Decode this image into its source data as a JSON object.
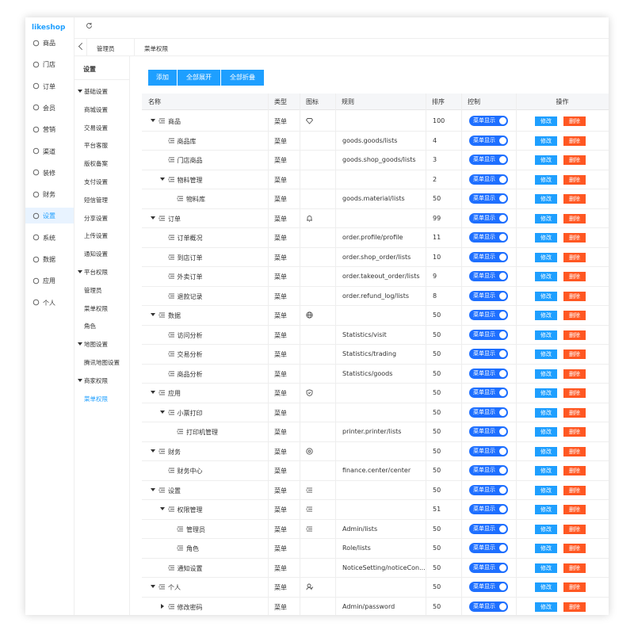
{
  "logo": "likeshop",
  "nav": [
    "商品",
    "门店",
    "订单",
    "会员",
    "营销",
    "渠道",
    "装修",
    "财务",
    "设置",
    "系统",
    "数据",
    "应用",
    "个人"
  ],
  "nav_active": 8,
  "submenu": {
    "title": "设置",
    "items": [
      {
        "label": "基础设置",
        "group": true
      },
      {
        "label": "商城设置"
      },
      {
        "label": "交易设置"
      },
      {
        "label": "平台客服"
      },
      {
        "label": "版权备案"
      },
      {
        "label": "支付设置"
      },
      {
        "label": "短信管理"
      },
      {
        "label": "分享设置"
      },
      {
        "label": "上传设置"
      },
      {
        "label": "通知设置"
      },
      {
        "label": "平台权限",
        "group": true
      },
      {
        "label": "管理员"
      },
      {
        "label": "菜单权限"
      },
      {
        "label": "角色"
      },
      {
        "label": "地图设置",
        "group": true
      },
      {
        "label": "腾讯地图设置"
      },
      {
        "label": "商家权限",
        "group": true
      },
      {
        "label": "菜单权限",
        "active": true
      }
    ]
  },
  "tabs": [
    "管理员",
    "菜单权限"
  ],
  "buttons": [
    "添加",
    "全部展开",
    "全部折叠"
  ],
  "table": {
    "headers": [
      "名称",
      "类型",
      "图标",
      "规则",
      "排序",
      "控制",
      "操作"
    ],
    "labels": {
      "show": "菜单显示",
      "edit": "修改",
      "delete": "删除"
    },
    "rows": [
      {
        "name": "商品",
        "level": 0,
        "arrow": "down",
        "icon": "diamond",
        "type": "菜单",
        "sort": "100"
      },
      {
        "name": "商品库",
        "level": 1,
        "type": "菜单",
        "rule": "goods.goods/lists",
        "sort": "4"
      },
      {
        "name": "门店商品",
        "level": 1,
        "type": "菜单",
        "rule": "goods.shop_goods/lists",
        "sort": "3"
      },
      {
        "name": "物料管理",
        "level": 1,
        "arrow": "down",
        "type": "菜单",
        "sort": "2"
      },
      {
        "name": "物料库",
        "level": 2,
        "type": "菜单",
        "rule": "goods.material/lists",
        "sort": "50"
      },
      {
        "name": "订单",
        "level": 0,
        "arrow": "down",
        "icon": "bell",
        "type": "菜单",
        "sort": "99"
      },
      {
        "name": "订单概况",
        "level": 1,
        "type": "菜单",
        "rule": "order.profile/profile",
        "sort": "11"
      },
      {
        "name": "到店订单",
        "level": 1,
        "type": "菜单",
        "rule": "order.shop_order/lists",
        "sort": "10"
      },
      {
        "name": "外卖订单",
        "level": 1,
        "type": "菜单",
        "rule": "order.takeout_order/lists",
        "sort": "9"
      },
      {
        "name": "退款记录",
        "level": 1,
        "type": "菜单",
        "rule": "order.refund_log/lists",
        "sort": "8"
      },
      {
        "name": "数据",
        "level": 0,
        "arrow": "down",
        "icon": "globe",
        "type": "菜单",
        "sort": "50"
      },
      {
        "name": "访问分析",
        "level": 1,
        "type": "菜单",
        "rule": "Statistics/visit",
        "sort": "50"
      },
      {
        "name": "交易分析",
        "level": 1,
        "type": "菜单",
        "rule": "Statistics/trading",
        "sort": "50"
      },
      {
        "name": "商品分析",
        "level": 1,
        "type": "菜单",
        "rule": "Statistics/goods",
        "sort": "50"
      },
      {
        "name": "应用",
        "level": 0,
        "arrow": "down",
        "icon": "shield",
        "type": "菜单",
        "sort": "50"
      },
      {
        "name": "小票打印",
        "level": 1,
        "arrow": "down",
        "type": "菜单",
        "sort": "50"
      },
      {
        "name": "打印机管理",
        "level": 2,
        "type": "菜单",
        "rule": "printer.printer/lists",
        "sort": "50"
      },
      {
        "name": "财务",
        "level": 0,
        "arrow": "down",
        "icon": "coin",
        "type": "菜单",
        "sort": "50"
      },
      {
        "name": "财务中心",
        "level": 1,
        "type": "菜单",
        "rule": "finance.center/center",
        "sort": "50"
      },
      {
        "name": "设置",
        "level": 0,
        "arrow": "down",
        "icon": "list",
        "type": "菜单",
        "sort": "50"
      },
      {
        "name": "权限管理",
        "level": 1,
        "arrow": "down",
        "icon": "list",
        "type": "菜单",
        "sort": "51"
      },
      {
        "name": "管理员",
        "level": 2,
        "icon": "list",
        "type": "菜单",
        "rule": "Admin/lists",
        "sort": "50"
      },
      {
        "name": "角色",
        "level": 2,
        "type": "菜单",
        "rule": "Role/lists",
        "sort": "50"
      },
      {
        "name": "通知设置",
        "level": 1,
        "type": "菜单",
        "rule": "NoticeSetting/noticeCon...",
        "sort": "50"
      },
      {
        "name": "个人",
        "level": 0,
        "arrow": "down",
        "icon": "person",
        "type": "菜单",
        "sort": "50"
      },
      {
        "name": "修改密码",
        "level": 1,
        "arrow": "right",
        "type": "菜单",
        "rule": "Admin/password",
        "sort": "50"
      }
    ]
  }
}
